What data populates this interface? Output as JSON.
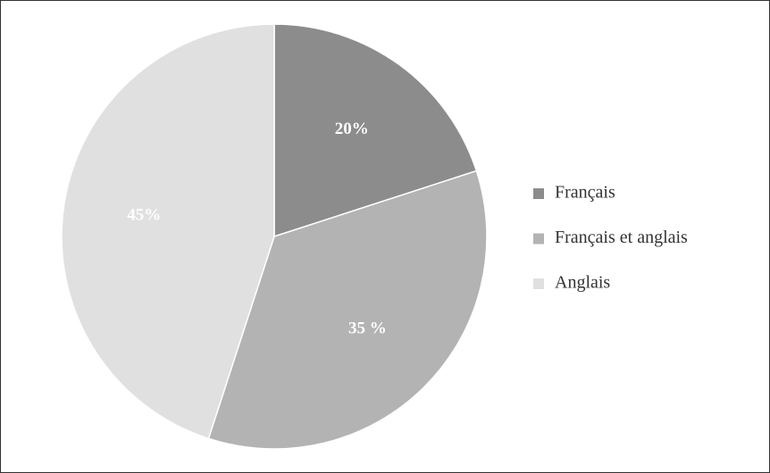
{
  "chart_data": {
    "type": "pie",
    "categories": [
      "Français",
      "Français et anglais",
      "Anglais"
    ],
    "values": [
      20,
      35,
      45
    ],
    "value_labels": [
      "20%",
      "35 %",
      "45%"
    ],
    "colors": [
      "#8c8c8c",
      "#b3b3b3",
      "#e0e0e0"
    ],
    "legend": "right"
  }
}
